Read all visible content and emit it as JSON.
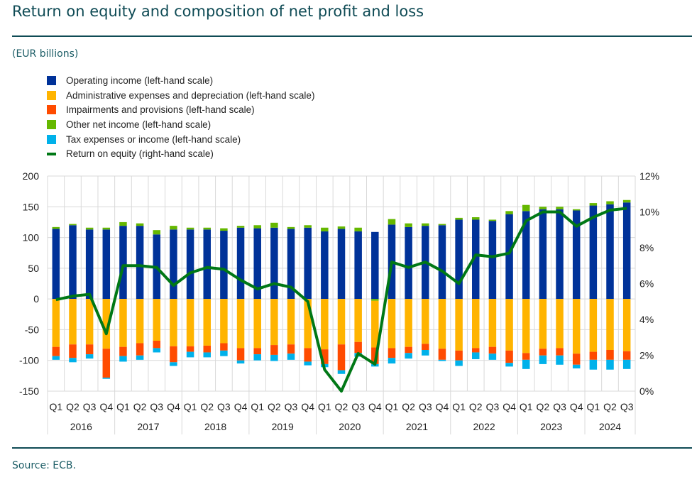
{
  "title": "Return on equity and composition of net profit and loss",
  "unit": "(EUR billions)",
  "source": "Source: ECB.",
  "chart_data": {
    "type": "bar",
    "stacked": true,
    "years": [
      "2016",
      "2017",
      "2018",
      "2019",
      "2020",
      "2021",
      "2022",
      "2023",
      "2024"
    ],
    "categories": [
      "Q1",
      "Q2",
      "Q3",
      "Q4",
      "Q1",
      "Q2",
      "Q3",
      "Q4",
      "Q1",
      "Q2",
      "Q3",
      "Q4",
      "Q1",
      "Q2",
      "Q3",
      "Q4",
      "Q1",
      "Q2",
      "Q3",
      "Q4",
      "Q1",
      "Q2",
      "Q3",
      "Q4",
      "Q1",
      "Q2",
      "Q3",
      "Q4",
      "Q1",
      "Q2",
      "Q3",
      "Q4",
      "Q1",
      "Q2",
      "Q3"
    ],
    "left_axis": {
      "ylim": [
        -150,
        200
      ],
      "ticks": [
        "200",
        "150",
        "100",
        "50",
        "0",
        "-50",
        "-100",
        "-150"
      ]
    },
    "right_axis": {
      "ylim": [
        0,
        12
      ],
      "ticks": [
        "12%",
        "10%",
        "8%",
        "6%",
        "4%",
        "2%",
        "0%"
      ]
    },
    "grid": true,
    "legend_position": "top-left",
    "series": [
      {
        "name": "Operating income (left-hand scale)",
        "color": "#003299",
        "kind": "bar",
        "values": [
          114,
          120,
          113,
          113,
          119,
          119,
          105,
          113,
          113,
          113,
          111,
          116,
          115,
          116,
          114,
          116,
          110,
          114,
          110,
          109,
          121,
          117,
          119,
          120,
          129,
          129,
          127,
          138,
          143,
          146,
          146,
          144,
          152,
          154,
          157
        ]
      },
      {
        "name": "Administrative expenses and depreciation (left-hand scale)",
        "color": "#ffb400",
        "kind": "bar",
        "values": [
          -78,
          -74,
          -74,
          -81,
          -78,
          -72,
          -68,
          -77,
          -77,
          -76,
          -72,
          -80,
          -80,
          -75,
          -74,
          -80,
          -82,
          -74,
          -70,
          -76,
          -80,
          -78,
          -73,
          -81,
          -84,
          -80,
          -78,
          -84,
          -88,
          -81,
          -80,
          -89,
          -86,
          -83,
          -85
        ]
      },
      {
        "name": "Impairments and provisions (left-hand scale)",
        "color": "#ff4b00",
        "kind": "bar",
        "values": [
          -15,
          -22,
          -16,
          -47,
          -15,
          -20,
          -12,
          -26,
          -9,
          -11,
          -12,
          -20,
          -10,
          -16,
          -15,
          -22,
          -24,
          -42,
          -18,
          -27,
          -16,
          -10,
          -10,
          -18,
          -16,
          -7,
          -11,
          -20,
          -11,
          -11,
          -12,
          -18,
          -13,
          -16,
          -14
        ]
      },
      {
        "name": "Other net income (left-hand scale)",
        "color": "#65b800",
        "kind": "bar",
        "values": [
          3,
          2,
          3,
          3,
          6,
          4,
          7,
          6,
          3,
          3,
          4,
          3,
          5,
          8,
          3,
          4,
          6,
          4,
          6,
          -3,
          9,
          6,
          4,
          2,
          3,
          4,
          2,
          5,
          10,
          4,
          4,
          2,
          4,
          5,
          4
        ]
      },
      {
        "name": "Tax expenses or income (left-hand scale)",
        "color": "#00b1ea",
        "kind": "bar",
        "values": [
          -6,
          -7,
          -7,
          -2,
          -9,
          -7,
          -7,
          -6,
          -9,
          -8,
          -9,
          -5,
          -10,
          -10,
          -10,
          -6,
          -5,
          -6,
          -6,
          -4,
          -9,
          -9,
          -9,
          -2,
          -9,
          -11,
          -10,
          -6,
          -15,
          -14,
          -15,
          -6,
          -16,
          -16,
          -15
        ]
      },
      {
        "name": "Return on equity (right-hand scale)",
        "color": "#007816",
        "kind": "line",
        "axis": "right",
        "unit": "%",
        "values": [
          5.1,
          5.3,
          5.4,
          3.2,
          7.0,
          7.0,
          6.9,
          5.9,
          6.6,
          6.9,
          6.8,
          6.2,
          5.7,
          6.0,
          5.8,
          5.0,
          1.2,
          0.0,
          2.1,
          1.5,
          7.2,
          6.9,
          7.2,
          6.7,
          6.0,
          7.6,
          7.5,
          7.7,
          9.5,
          10.0,
          10.0,
          9.2,
          9.7,
          10.1,
          10.2
        ]
      }
    ]
  }
}
